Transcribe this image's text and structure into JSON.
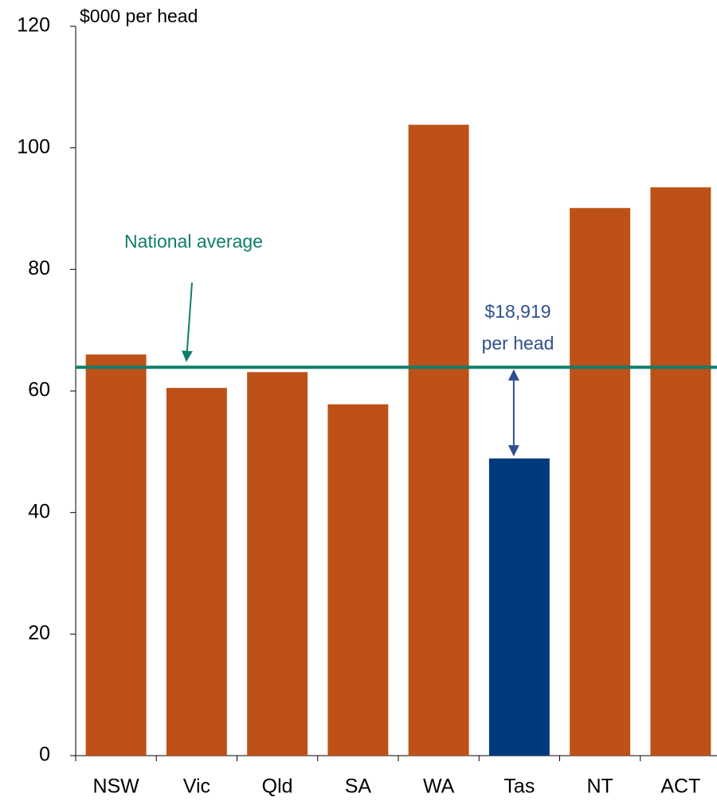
{
  "chart_data": {
    "type": "bar",
    "y_label": "$000 per head",
    "categories": [
      "NSW",
      "Vic",
      "Qld",
      "SA",
      "WA",
      "Tas",
      "NT",
      "ACT"
    ],
    "values": [
      66.0,
      60.5,
      63.1,
      57.8,
      103.8,
      48.9,
      90.1,
      93.5
    ],
    "colors": [
      "#bd5117",
      "#bd5117",
      "#bd5117",
      "#bd5117",
      "#bd5117",
      "#003a7d",
      "#bd5117",
      "#bd5117"
    ],
    "ylim": [
      0,
      120
    ],
    "yticks": [
      0,
      20,
      40,
      60,
      80,
      100,
      120
    ],
    "reference_line": {
      "value": 63.9,
      "label": "National average",
      "color": "#0e7e6a"
    },
    "annotation": {
      "lines": [
        "$18,919",
        "per head"
      ],
      "color": "#2f4f8f"
    }
  }
}
